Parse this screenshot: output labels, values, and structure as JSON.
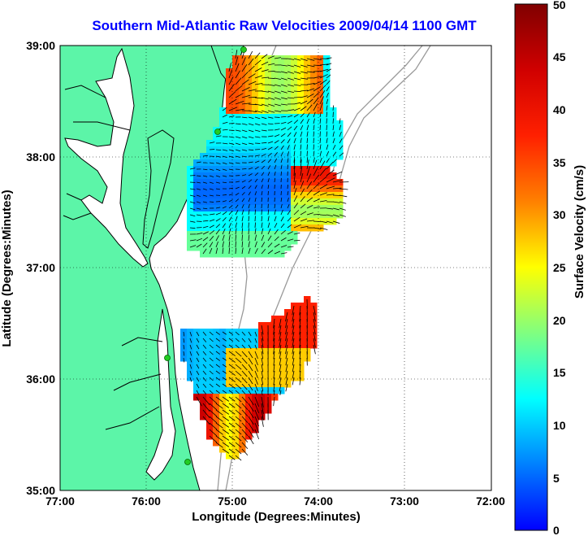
{
  "title": "Southern Mid-Atlantic Raw Velocities 2009/04/14 1100 GMT",
  "xlabel": "Longitude (Degrees:Minutes)",
  "ylabel": "Latitude (Degrees:Minutes)",
  "x_ticks": [
    "77:00",
    "76:00",
    "75:00",
    "74:00",
    "73:00",
    "72:00"
  ],
  "y_ticks": [
    "39:00",
    "38:00",
    "37:00",
    "36:00",
    "35:00"
  ],
  "colorbar": {
    "label": "Surface Velocity (cm/s)",
    "ticks": [
      "0",
      "5",
      "10",
      "15",
      "20",
      "25",
      "30",
      "35",
      "40",
      "45",
      "50"
    ],
    "range": [
      0,
      50
    ]
  },
  "colors": {
    "title": "#0000ff",
    "land": "#5cf5a8",
    "water": "#ffffff",
    "coast": "#000000",
    "bathymetry": "#9a9a9a",
    "station": "#22cc22"
  },
  "stations": 4
}
